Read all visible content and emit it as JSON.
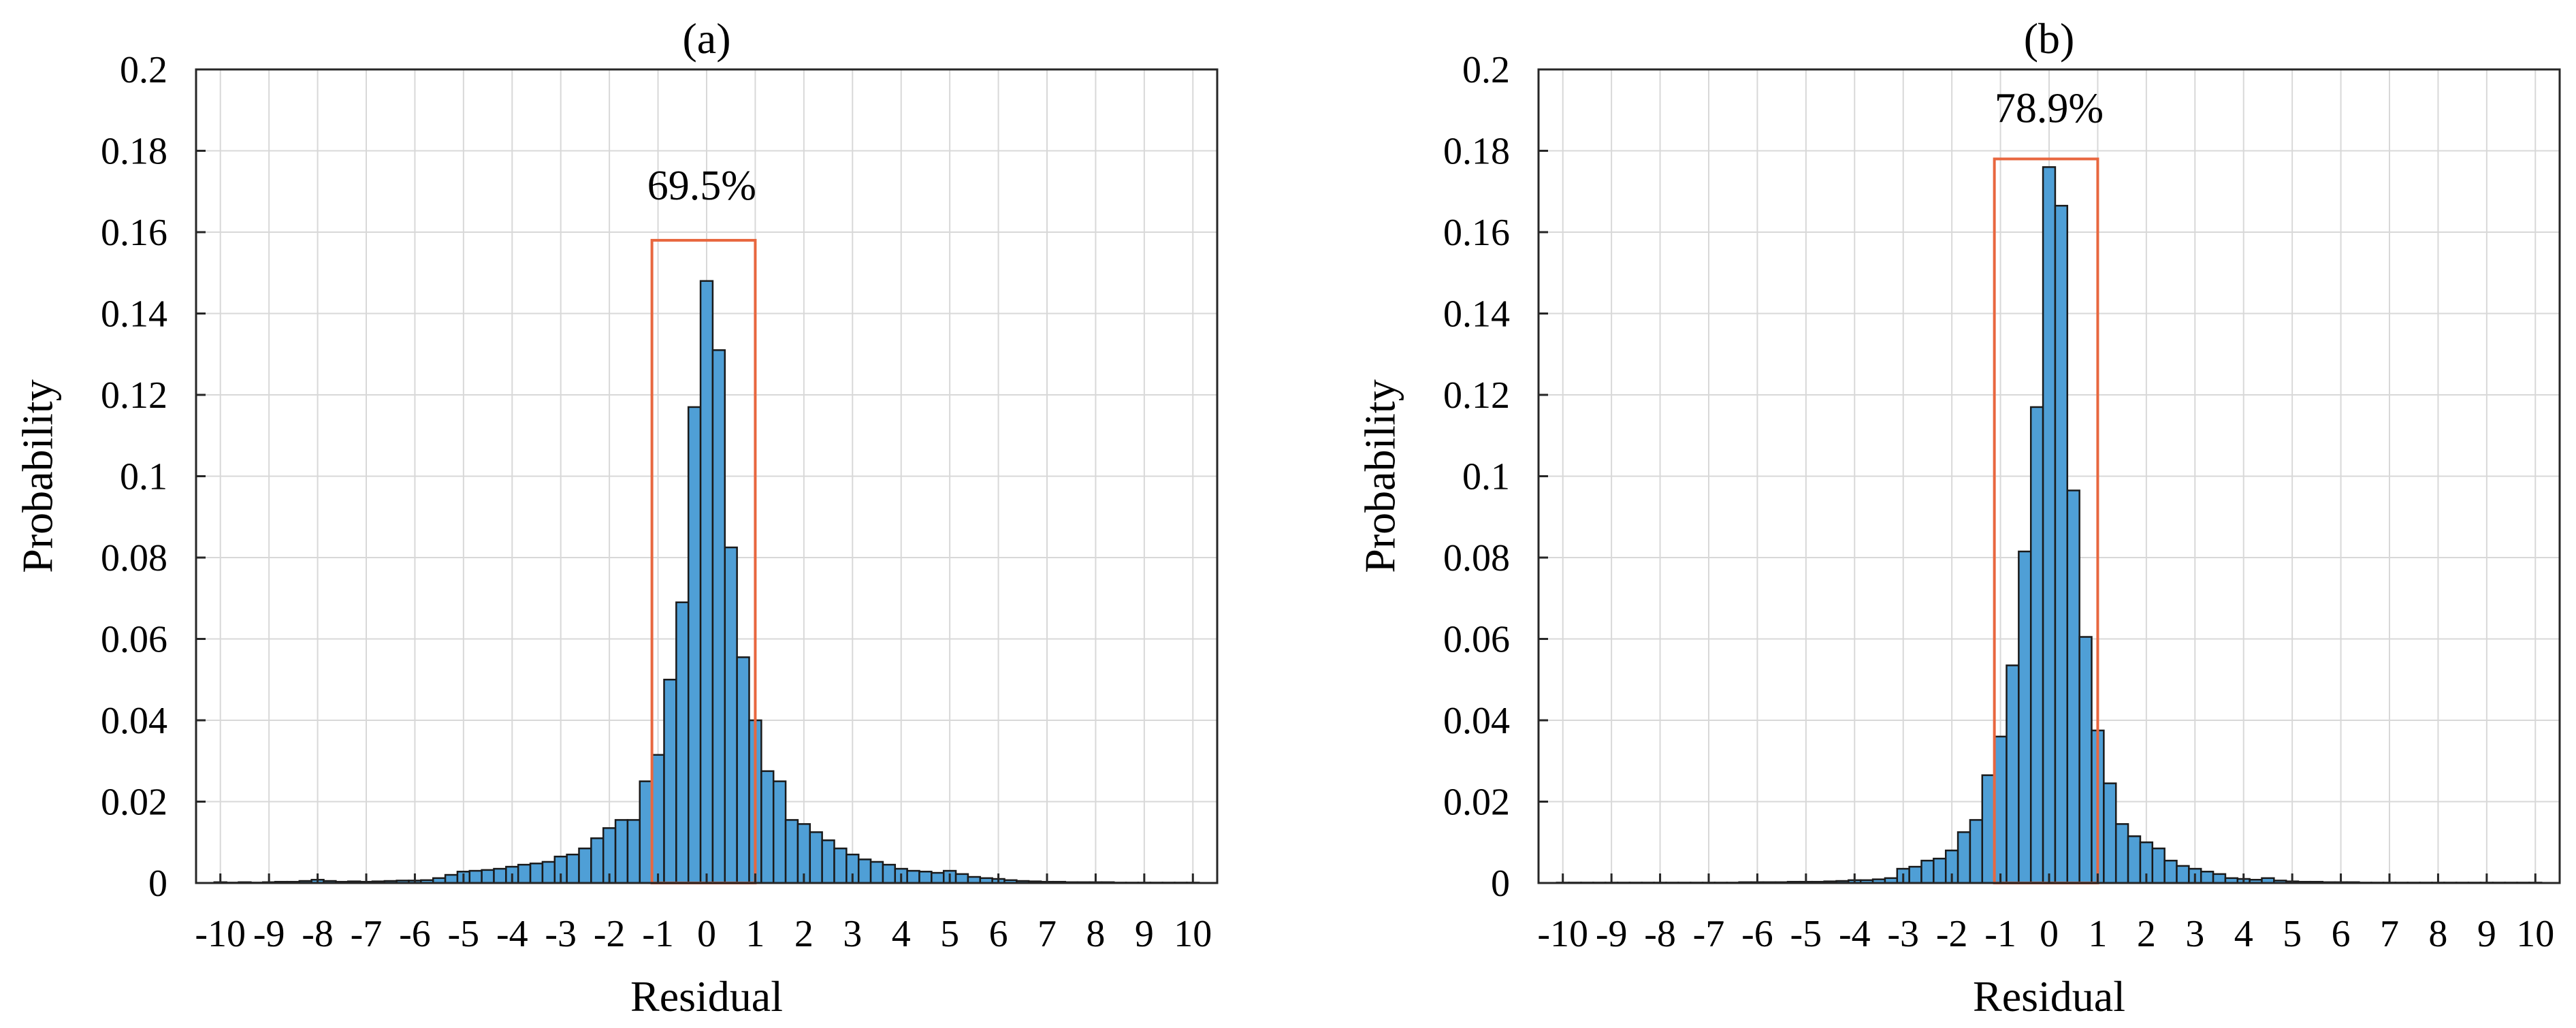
{
  "colors": {
    "bar_fill": "#4f9fd6",
    "bar_edge": "#1a1a1a",
    "box": "#e8673f",
    "grid": "#d8d8d8",
    "axis": "#262626"
  },
  "chart_data": [
    {
      "type": "bar",
      "title": "(a)",
      "xlabel": "Residual",
      "ylabel": "Probability",
      "xlim": [
        -10.5,
        10.5
      ],
      "ylim": [
        0,
        0.2
      ],
      "grid": true,
      "bin_width": 0.25,
      "xticks": [
        "-10",
        "-9",
        "-8",
        "-7",
        "-6",
        "-5",
        "-4",
        "-3",
        "-2",
        "-1",
        "0",
        "1",
        "2",
        "3",
        "4",
        "5",
        "6",
        "7",
        "8",
        "9",
        "10"
      ],
      "yticks": [
        "0",
        "0.02",
        "0.04",
        "0.06",
        "0.08",
        "0.1",
        "0.12",
        "0.14",
        "0.16",
        "0.18",
        "0.2"
      ],
      "bins": [
        {
          "x": -10.0,
          "y": 0.0002
        },
        {
          "x": -9.75,
          "y": 0.0001
        },
        {
          "x": -9.5,
          "y": 0.0002
        },
        {
          "x": -9.25,
          "y": 0.0001
        },
        {
          "x": -9.0,
          "y": 0.0002
        },
        {
          "x": -8.75,
          "y": 0.0003
        },
        {
          "x": -8.5,
          "y": 0.0003
        },
        {
          "x": -8.25,
          "y": 0.0005
        },
        {
          "x": -8.0,
          "y": 0.0008
        },
        {
          "x": -7.75,
          "y": 0.0005
        },
        {
          "x": -7.5,
          "y": 0.0003
        },
        {
          "x": -7.25,
          "y": 0.0004
        },
        {
          "x": -7.0,
          "y": 0.0003
        },
        {
          "x": -6.75,
          "y": 0.0004
        },
        {
          "x": -6.5,
          "y": 0.0005
        },
        {
          "x": -6.25,
          "y": 0.0006
        },
        {
          "x": -6.0,
          "y": 0.0006
        },
        {
          "x": -5.75,
          "y": 0.0007
        },
        {
          "x": -5.5,
          "y": 0.0012
        },
        {
          "x": -5.25,
          "y": 0.002
        },
        {
          "x": -5.0,
          "y": 0.0028
        },
        {
          "x": -4.75,
          "y": 0.003
        },
        {
          "x": -4.5,
          "y": 0.0032
        },
        {
          "x": -4.25,
          "y": 0.0035
        },
        {
          "x": -4.0,
          "y": 0.004
        },
        {
          "x": -3.75,
          "y": 0.0045
        },
        {
          "x": -3.5,
          "y": 0.0048
        },
        {
          "x": -3.25,
          "y": 0.0052
        },
        {
          "x": -3.0,
          "y": 0.0065
        },
        {
          "x": -2.75,
          "y": 0.007
        },
        {
          "x": -2.5,
          "y": 0.0085
        },
        {
          "x": -2.25,
          "y": 0.011
        },
        {
          "x": -2.0,
          "y": 0.0135
        },
        {
          "x": -1.75,
          "y": 0.0155
        },
        {
          "x": -1.5,
          "y": 0.0155
        },
        {
          "x": -1.25,
          "y": 0.025
        },
        {
          "x": -1.0,
          "y": 0.0315
        },
        {
          "x": -0.75,
          "y": 0.05
        },
        {
          "x": -0.5,
          "y": 0.069
        },
        {
          "x": -0.25,
          "y": 0.117
        },
        {
          "x": 0.0,
          "y": 0.148
        },
        {
          "x": 0.25,
          "y": 0.131
        },
        {
          "x": 0.5,
          "y": 0.0825
        },
        {
          "x": 0.75,
          "y": 0.0555
        },
        {
          "x": 1.0,
          "y": 0.04
        },
        {
          "x": 1.25,
          "y": 0.0275
        },
        {
          "x": 1.5,
          "y": 0.025
        },
        {
          "x": 1.75,
          "y": 0.0155
        },
        {
          "x": 2.0,
          "y": 0.0145
        },
        {
          "x": 2.25,
          "y": 0.0125
        },
        {
          "x": 2.5,
          "y": 0.0105
        },
        {
          "x": 2.75,
          "y": 0.0085
        },
        {
          "x": 3.0,
          "y": 0.007
        },
        {
          "x": 3.25,
          "y": 0.0058
        },
        {
          "x": 3.5,
          "y": 0.0052
        },
        {
          "x": 3.75,
          "y": 0.0045
        },
        {
          "x": 4.0,
          "y": 0.0035
        },
        {
          "x": 4.25,
          "y": 0.003
        },
        {
          "x": 4.5,
          "y": 0.0028
        },
        {
          "x": 4.75,
          "y": 0.0025
        },
        {
          "x": 5.0,
          "y": 0.003
        },
        {
          "x": 5.25,
          "y": 0.0022
        },
        {
          "x": 5.5,
          "y": 0.0015
        },
        {
          "x": 5.75,
          "y": 0.0012
        },
        {
          "x": 6.0,
          "y": 0.001
        },
        {
          "x": 6.25,
          "y": 0.0007
        },
        {
          "x": 6.5,
          "y": 0.0005
        },
        {
          "x": 6.75,
          "y": 0.0004
        },
        {
          "x": 7.0,
          "y": 0.0003
        },
        {
          "x": 7.25,
          "y": 0.0003
        },
        {
          "x": 7.5,
          "y": 0.0002
        },
        {
          "x": 7.75,
          "y": 0.0002
        },
        {
          "x": 8.0,
          "y": 0.0002
        },
        {
          "x": 8.25,
          "y": 0.0002
        },
        {
          "x": 8.5,
          "y": 0.0001
        },
        {
          "x": 8.75,
          "y": 0.0001
        },
        {
          "x": 9.0,
          "y": 0.0001
        },
        {
          "x": 9.25,
          "y": 0.0001
        },
        {
          "x": 9.5,
          "y": 0.0001
        },
        {
          "x": 9.75,
          "y": 0.0001
        },
        {
          "x": 10.0,
          "y": 0.0001
        }
      ],
      "highlight": {
        "x0": -1.125,
        "x1": 1.0,
        "y0": 0,
        "y1": 0.158,
        "label": "69.5%",
        "label_x": -0.1,
        "label_y": 0.168
      }
    },
    {
      "type": "bar",
      "title": "(b)",
      "xlabel": "Residual",
      "ylabel": "Probability",
      "xlim": [
        -10.5,
        10.5
      ],
      "ylim": [
        0,
        0.2
      ],
      "grid": true,
      "bin_width": 0.25,
      "xticks": [
        "-10",
        "-9",
        "-8",
        "-7",
        "-6",
        "-5",
        "-4",
        "-3",
        "-2",
        "-1",
        "0",
        "1",
        "2",
        "3",
        "4",
        "5",
        "6",
        "7",
        "8",
        "9",
        "10"
      ],
      "yticks": [
        "0",
        "0.02",
        "0.04",
        "0.06",
        "0.08",
        "0.1",
        "0.12",
        "0.14",
        "0.16",
        "0.18",
        "0.2"
      ],
      "bins": [
        {
          "x": -10.0,
          "y": 0.0001
        },
        {
          "x": -9.75,
          "y": 0.0001
        },
        {
          "x": -9.5,
          "y": 0.0001
        },
        {
          "x": -9.25,
          "y": 0.0001
        },
        {
          "x": -9.0,
          "y": 0.0001
        },
        {
          "x": -8.75,
          "y": 0.0001
        },
        {
          "x": -8.5,
          "y": 0.0001
        },
        {
          "x": -8.25,
          "y": 0.0001
        },
        {
          "x": -8.0,
          "y": 0.0001
        },
        {
          "x": -7.75,
          "y": 0.0001
        },
        {
          "x": -7.5,
          "y": 0.0001
        },
        {
          "x": -7.25,
          "y": 0.0001
        },
        {
          "x": -7.0,
          "y": 0.0001
        },
        {
          "x": -6.75,
          "y": 0.0001
        },
        {
          "x": -6.5,
          "y": 0.0001
        },
        {
          "x": -6.25,
          "y": 0.0002
        },
        {
          "x": -6.0,
          "y": 0.0002
        },
        {
          "x": -5.75,
          "y": 0.0002
        },
        {
          "x": -5.5,
          "y": 0.0002
        },
        {
          "x": -5.25,
          "y": 0.0003
        },
        {
          "x": -5.0,
          "y": 0.0003
        },
        {
          "x": -4.75,
          "y": 0.0003
        },
        {
          "x": -4.5,
          "y": 0.0004
        },
        {
          "x": -4.25,
          "y": 0.0005
        },
        {
          "x": -4.0,
          "y": 0.0007
        },
        {
          "x": -3.75,
          "y": 0.0007
        },
        {
          "x": -3.5,
          "y": 0.0009
        },
        {
          "x": -3.25,
          "y": 0.0012
        },
        {
          "x": -3.0,
          "y": 0.0035
        },
        {
          "x": -2.75,
          "y": 0.004
        },
        {
          "x": -2.5,
          "y": 0.0055
        },
        {
          "x": -2.25,
          "y": 0.006
        },
        {
          "x": -2.0,
          "y": 0.008
        },
        {
          "x": -1.75,
          "y": 0.0125
        },
        {
          "x": -1.5,
          "y": 0.0155
        },
        {
          "x": -1.25,
          "y": 0.0265
        },
        {
          "x": -1.0,
          "y": 0.036
        },
        {
          "x": -0.75,
          "y": 0.0535
        },
        {
          "x": -0.5,
          "y": 0.0815
        },
        {
          "x": -0.25,
          "y": 0.117
        },
        {
          "x": 0.0,
          "y": 0.176
        },
        {
          "x": 0.25,
          "y": 0.1665
        },
        {
          "x": 0.5,
          "y": 0.0965
        },
        {
          "x": 0.75,
          "y": 0.0605
        },
        {
          "x": 1.0,
          "y": 0.0375
        },
        {
          "x": 1.25,
          "y": 0.0245
        },
        {
          "x": 1.5,
          "y": 0.0145
        },
        {
          "x": 1.75,
          "y": 0.0115
        },
        {
          "x": 2.0,
          "y": 0.01
        },
        {
          "x": 2.25,
          "y": 0.0085
        },
        {
          "x": 2.5,
          "y": 0.0055
        },
        {
          "x": 2.75,
          "y": 0.0042
        },
        {
          "x": 3.0,
          "y": 0.0035
        },
        {
          "x": 3.25,
          "y": 0.0028
        },
        {
          "x": 3.5,
          "y": 0.0022
        },
        {
          "x": 3.75,
          "y": 0.0012
        },
        {
          "x": 4.0,
          "y": 0.001
        },
        {
          "x": 4.25,
          "y": 0.0008
        },
        {
          "x": 4.5,
          "y": 0.0012
        },
        {
          "x": 4.75,
          "y": 0.0006
        },
        {
          "x": 5.0,
          "y": 0.0004
        },
        {
          "x": 5.25,
          "y": 0.0003
        },
        {
          "x": 5.5,
          "y": 0.0003
        },
        {
          "x": 5.75,
          "y": 0.0002
        },
        {
          "x": 6.0,
          "y": 0.0002
        },
        {
          "x": 6.25,
          "y": 0.0002
        },
        {
          "x": 6.5,
          "y": 0.0001
        },
        {
          "x": 6.75,
          "y": 0.0001
        },
        {
          "x": 7.0,
          "y": 0.0001
        },
        {
          "x": 7.25,
          "y": 0.0001
        },
        {
          "x": 7.5,
          "y": 0.0001
        },
        {
          "x": 7.75,
          "y": 0.0001
        },
        {
          "x": 8.0,
          "y": 0.0001
        },
        {
          "x": 8.25,
          "y": 0.0001
        },
        {
          "x": 8.5,
          "y": 0.0001
        },
        {
          "x": 8.75,
          "y": 0.0001
        },
        {
          "x": 9.0,
          "y": 0.0001
        },
        {
          "x": 9.25,
          "y": 0.0001
        },
        {
          "x": 9.5,
          "y": 0.0001
        },
        {
          "x": 9.75,
          "y": 0.0001
        },
        {
          "x": 10.0,
          "y": 0.0001
        }
      ],
      "highlight": {
        "x0": -1.125,
        "x1": 1.0,
        "y0": 0,
        "y1": 0.178,
        "label": "78.9%",
        "label_x": 0.0,
        "label_y": 0.187
      }
    }
  ]
}
